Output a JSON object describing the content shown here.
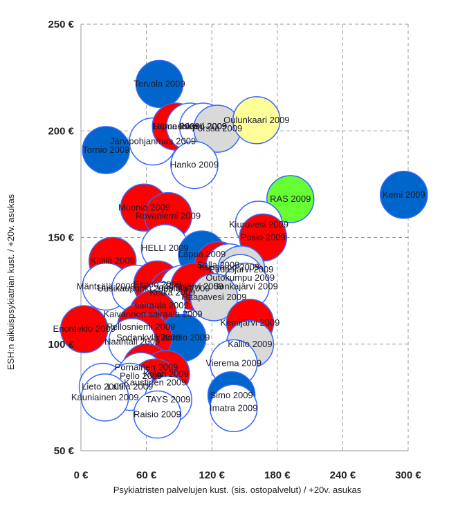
{
  "chart_data": {
    "type": "scatter",
    "title": "",
    "xlabel": "Psykiatristen palvelujen kust. (sis. ostopalvelut)  / +20v. asukas",
    "ylabel": "ESH:n aikuispsykiatrian  kust.  / +20v. asukas",
    "xlim": [
      0,
      300
    ],
    "ylim": [
      50,
      250
    ],
    "x_ticks": [
      0,
      60,
      120,
      180,
      240,
      300
    ],
    "x_tick_labels": [
      "0 €",
      "60 €",
      "120 €",
      "180 €",
      "240 €",
      "300 €"
    ],
    "y_ticks": [
      50,
      100,
      150,
      200,
      250
    ],
    "y_tick_labels": [
      "50 €",
      "100 €",
      "150 €",
      "200 €",
      "250 €"
    ],
    "grid": true,
    "colors": {
      "red": "#ff0000",
      "blue": "#0066cc",
      "gray": "#d9d9d9",
      "white": "#ffffff",
      "yellow": "#ffff99",
      "green": "#66ff33",
      "outline": "#3366ff",
      "grid": "#999999"
    },
    "points": [
      {
        "x": 72,
        "y": 222,
        "color": "blue",
        "label": "Tervola 2009"
      },
      {
        "x": 23,
        "y": 191,
        "color": "blue",
        "label": "Tornio 2009"
      },
      {
        "x": 66,
        "y": 195,
        "color": "white",
        "label": "Järvipohjanmaa 2009"
      },
      {
        "x": 87,
        "y": 202,
        "color": "red",
        "label": "Lapua 2009"
      },
      {
        "x": 100,
        "y": 202,
        "color": "white",
        "label": "Hämeenkyrö 2009"
      },
      {
        "x": 112,
        "y": 202,
        "color": "white",
        "label": "Iisalmi 2009"
      },
      {
        "x": 125,
        "y": 201,
        "color": "gray",
        "label": "Forssa 2009"
      },
      {
        "x": 161,
        "y": 205,
        "color": "yellow",
        "label": "Oulunkaari 2009"
      },
      {
        "x": 104,
        "y": 184,
        "color": "white",
        "label": "Hanko 2009"
      },
      {
        "x": 192,
        "y": 168,
        "color": "green",
        "label": "RAS 2009"
      },
      {
        "x": 296,
        "y": 170,
        "color": "blue",
        "label": "Kemi 2009"
      },
      {
        "x": 163,
        "y": 156,
        "color": "white",
        "label": "Kiuruvesi 2009"
      },
      {
        "x": 167,
        "y": 150,
        "color": "red",
        "label": "Posio 2009"
      },
      {
        "x": 58,
        "y": 164,
        "color": "red",
        "label": "Muonio 2009"
      },
      {
        "x": 80,
        "y": 160,
        "color": "red",
        "label": "Rovaniemi 2009"
      },
      {
        "x": 77,
        "y": 145,
        "color": "white",
        "label": "HELLI 2009"
      },
      {
        "x": 29,
        "y": 139,
        "color": "red",
        "label": "Kittilä 2009"
      },
      {
        "x": 111,
        "y": 142,
        "color": "blue",
        "label": "Lapua 2009"
      },
      {
        "x": 126,
        "y": 137,
        "color": "red",
        "label": "Salla 2009"
      },
      {
        "x": 136,
        "y": 136,
        "color": "white",
        "label": "Kuusamo 2009"
      },
      {
        "x": 147,
        "y": 135,
        "color": "gray",
        "label": "Pudasjärvi 2009"
      },
      {
        "x": 146,
        "y": 131,
        "color": "white",
        "label": "Outokumpu 2009"
      },
      {
        "x": 23,
        "y": 127,
        "color": "white",
        "label": "Mäntsälä 2009"
      },
      {
        "x": 50,
        "y": 126,
        "color": "white",
        "label": "Uusikaupunki 2009"
      },
      {
        "x": 70,
        "y": 128,
        "color": "red",
        "label": "Espoo 2009"
      },
      {
        "x": 84,
        "y": 124,
        "color": "red",
        "label": "Kotka 2009"
      },
      {
        "x": 94,
        "y": 126,
        "color": "white",
        "label": "Heinola 2009"
      },
      {
        "x": 104,
        "y": 127,
        "color": "red",
        "label": "Siilinjärvi 2009"
      },
      {
        "x": 151,
        "y": 127,
        "color": "white",
        "label": "Sonkajärvi 2009"
      },
      {
        "x": 122,
        "y": 122,
        "color": "gray",
        "label": "Haapavesi 2009"
      },
      {
        "x": 74,
        "y": 118,
        "color": "white",
        "label": "sairaala 2009"
      },
      {
        "x": 3,
        "y": 107,
        "color": "red",
        "label": "Enontekiö 2009"
      },
      {
        "x": 66,
        "y": 114,
        "color": "red",
        "label": "Kaivannon sairaala 2009"
      },
      {
        "x": 55,
        "y": 108,
        "color": "red",
        "label": "Pellosniemi 2009"
      },
      {
        "x": 93,
        "y": 103,
        "color": "blue",
        "label": "Ylitornio 2009"
      },
      {
        "x": 62,
        "y": 103,
        "color": "red",
        "label": "Sodankylä 2009"
      },
      {
        "x": 47,
        "y": 101,
        "color": "white",
        "label": "Naantali 2009"
      },
      {
        "x": 155,
        "y": 110,
        "color": "red",
        "label": "Kemijärvi 2009"
      },
      {
        "x": 155,
        "y": 100,
        "color": "gray",
        "label": "Kallio 2009"
      },
      {
        "x": 140,
        "y": 91,
        "color": "white",
        "label": "Vierema 2009"
      },
      {
        "x": 60,
        "y": 89,
        "color": "red",
        "label": "Pornainen 2009"
      },
      {
        "x": 78,
        "y": 86,
        "color": "red",
        "label": "Kolari 2009"
      },
      {
        "x": 55,
        "y": 85,
        "color": "white",
        "label": "Pello 2009"
      },
      {
        "x": 68,
        "y": 82,
        "color": "red",
        "label": "Kaustinen 2009"
      },
      {
        "x": 20,
        "y": 80,
        "color": "white",
        "label": "Lieto 2009"
      },
      {
        "x": 45,
        "y": 80,
        "color": "white",
        "label": "Laitila 2009"
      },
      {
        "x": 22,
        "y": 75,
        "color": "white",
        "label": "Kauniainen 2009"
      },
      {
        "x": 80,
        "y": 74,
        "color": "white",
        "label": "TAYS 2009"
      },
      {
        "x": 138,
        "y": 76,
        "color": "blue",
        "label": "Simo 2009"
      },
      {
        "x": 140,
        "y": 70,
        "color": "white",
        "label": "Imatra 2009"
      },
      {
        "x": 70,
        "y": 67,
        "color": "white",
        "label": "Raisio 2009"
      }
    ]
  }
}
